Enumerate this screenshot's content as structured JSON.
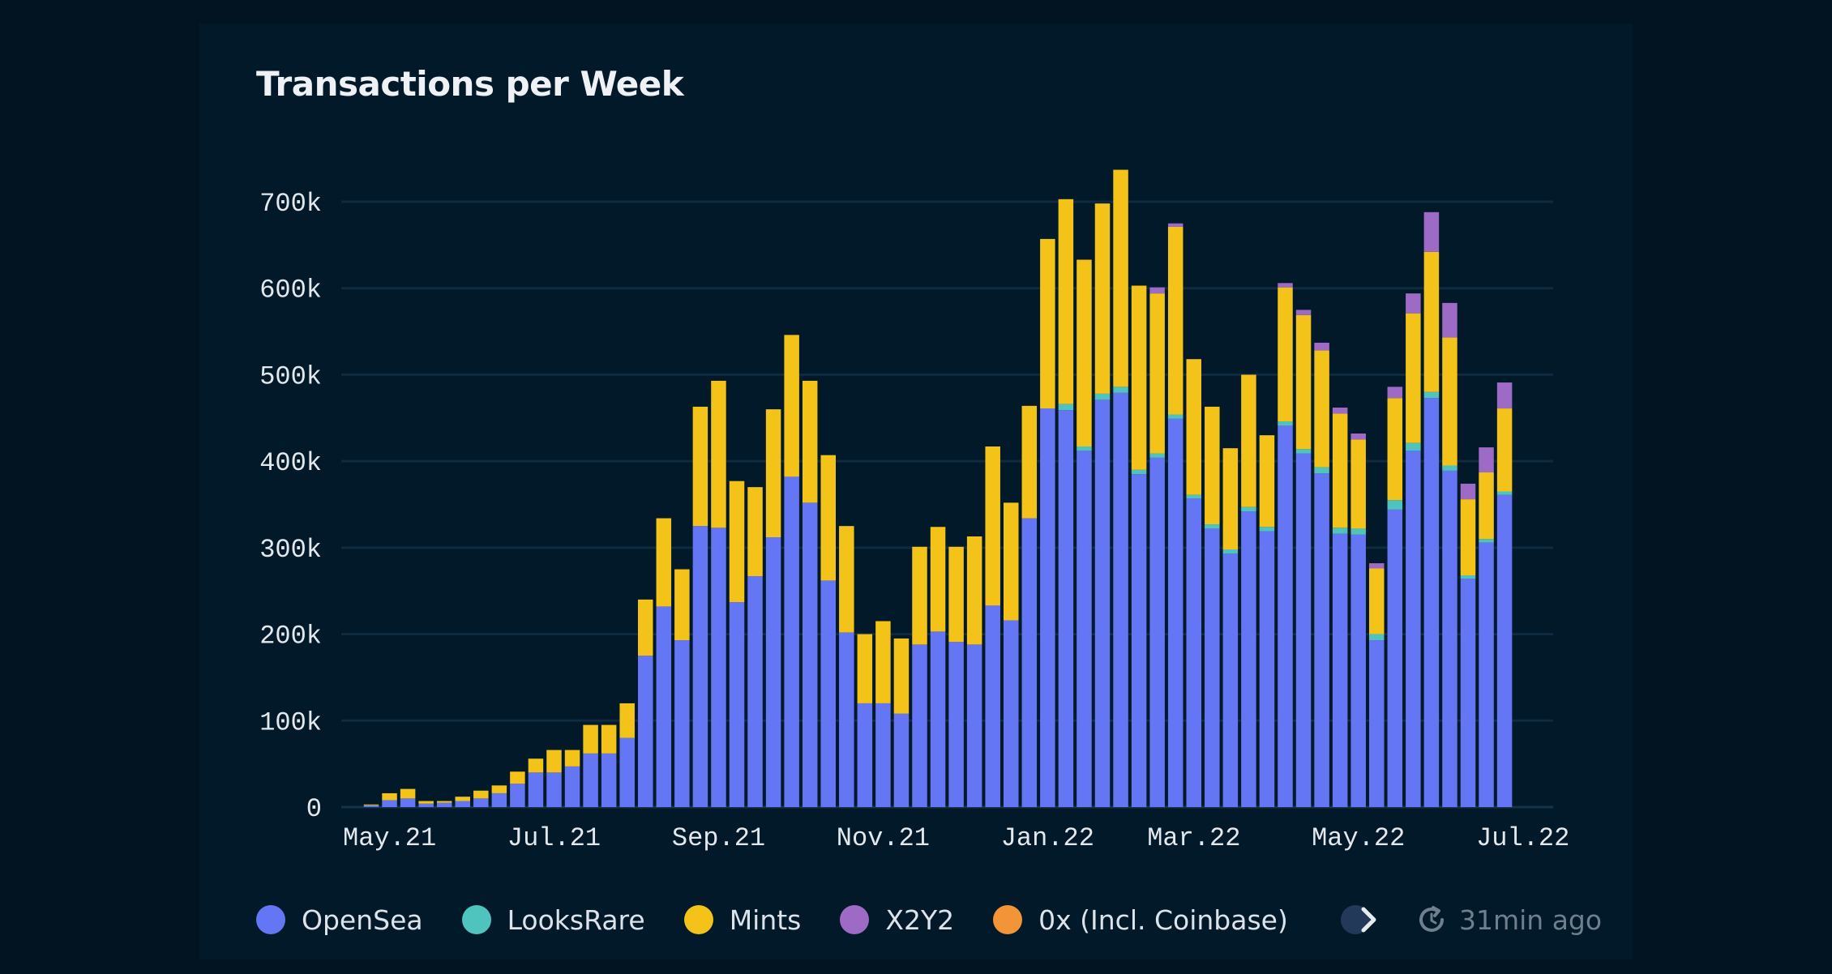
{
  "colors": {
    "OpenSea": "#6576f4",
    "LooksRare": "#4fc3bd",
    "Mints": "#f3c319",
    "X2Y2": "#9d6bc6",
    "0x (Incl. Coinbase)": "#f39438"
  },
  "legend": {
    "items": [
      {
        "label": "OpenSea"
      },
      {
        "label": "LooksRare"
      },
      {
        "label": "Mints"
      },
      {
        "label": "X2Y2"
      },
      {
        "label": "0x (Incl. Coinbase)"
      }
    ],
    "more_icon": "chevron-right-icon"
  },
  "status": {
    "updated": "31min ago",
    "icon": "refresh-icon"
  },
  "chart_data": {
    "type": "bar",
    "stacked": true,
    "title": "Transactions per Week",
    "xlabel": "",
    "ylabel": "",
    "ylim": [
      0,
      700000
    ],
    "yticks": [
      0,
      100000,
      200000,
      300000,
      400000,
      500000,
      600000,
      700000
    ],
    "ytick_labels": [
      "0",
      "100k",
      "200k",
      "300k",
      "400k",
      "500k",
      "600k",
      "700k"
    ],
    "x_tick_labels": [
      {
        "label": "May.21",
        "index": 1
      },
      {
        "label": "Jul.21",
        "index": 10
      },
      {
        "label": "Sep.21",
        "index": 19
      },
      {
        "label": "Nov.21",
        "index": 28
      },
      {
        "label": "Jan.22",
        "index": 37
      },
      {
        "label": "Mar.22",
        "index": 45
      },
      {
        "label": "May.22",
        "index": 54
      },
      {
        "label": "Jul.22",
        "index": 63
      }
    ],
    "grid": true,
    "legend_position": "bottom",
    "categories_count": 64,
    "series": [
      {
        "name": "OpenSea",
        "values": [
          2000,
          8000,
          10000,
          4000,
          5000,
          7000,
          10000,
          16000,
          27000,
          40000,
          40000,
          47000,
          62000,
          62000,
          80000,
          175000,
          232000,
          193000,
          325000,
          323000,
          237000,
          267000,
          312000,
          382000,
          352000,
          262000,
          202000,
          120000,
          120000,
          108000,
          188000,
          203000,
          191000,
          188000,
          233000,
          216000,
          334000,
          461000,
          459000,
          412000,
          471000,
          479000,
          385000,
          404000,
          449000,
          357000,
          322000,
          293000,
          342000,
          319000,
          441000,
          409000,
          386000,
          316000,
          315000,
          193000,
          344000,
          412000,
          473000,
          389000,
          264000,
          306000,
          361000,
          0
        ]
      },
      {
        "name": "LooksRare",
        "values": [
          0,
          0,
          0,
          0,
          0,
          0,
          0,
          0,
          0,
          0,
          0,
          0,
          0,
          0,
          0,
          0,
          0,
          0,
          0,
          0,
          0,
          0,
          0,
          0,
          0,
          0,
          0,
          0,
          0,
          0,
          0,
          0,
          0,
          0,
          0,
          0,
          0,
          0,
          7000,
          5000,
          7000,
          7000,
          5000,
          5000,
          5000,
          4000,
          5000,
          5000,
          5000,
          5000,
          5000,
          5000,
          7000,
          7000,
          7000,
          7000,
          11000,
          9000,
          7000,
          6000,
          4000,
          4000,
          4000,
          0
        ]
      },
      {
        "name": "Mints",
        "values": [
          1000,
          8000,
          11000,
          3000,
          2000,
          5000,
          9000,
          9000,
          14000,
          16000,
          26000,
          19000,
          33000,
          33000,
          40000,
          65000,
          102000,
          82000,
          138000,
          170000,
          140000,
          103000,
          148000,
          164000,
          141000,
          145000,
          123000,
          80000,
          95000,
          87000,
          113000,
          121000,
          110000,
          125000,
          184000,
          136000,
          130000,
          196000,
          237000,
          216000,
          220000,
          251000,
          213000,
          185000,
          217000,
          157000,
          136000,
          117000,
          153000,
          106000,
          155000,
          155000,
          135000,
          132000,
          103000,
          76000,
          118000,
          150000,
          162000,
          148000,
          88000,
          77000,
          96000,
          0
        ]
      },
      {
        "name": "X2Y2",
        "values": [
          0,
          0,
          0,
          0,
          0,
          0,
          0,
          0,
          0,
          0,
          0,
          0,
          0,
          0,
          0,
          0,
          0,
          0,
          0,
          0,
          0,
          0,
          0,
          0,
          0,
          0,
          0,
          0,
          0,
          0,
          0,
          0,
          0,
          0,
          0,
          0,
          0,
          0,
          0,
          0,
          0,
          0,
          0,
          7000,
          4000,
          0,
          0,
          0,
          0,
          0,
          5000,
          6000,
          9000,
          7000,
          7000,
          6000,
          13000,
          23000,
          46000,
          40000,
          18000,
          29000,
          30000,
          0
        ]
      },
      {
        "name": "0x (Incl. Coinbase)",
        "values": [
          0,
          0,
          0,
          0,
          0,
          0,
          0,
          0,
          0,
          0,
          0,
          0,
          0,
          0,
          0,
          0,
          0,
          0,
          0,
          0,
          0,
          0,
          0,
          0,
          0,
          0,
          0,
          0,
          0,
          0,
          0,
          0,
          0,
          0,
          0,
          0,
          0,
          0,
          0,
          0,
          0,
          0,
          0,
          0,
          0,
          0,
          0,
          0,
          0,
          0,
          0,
          0,
          0,
          0,
          0,
          0,
          0,
          0,
          0,
          0,
          0,
          0,
          0,
          0
        ]
      }
    ]
  }
}
